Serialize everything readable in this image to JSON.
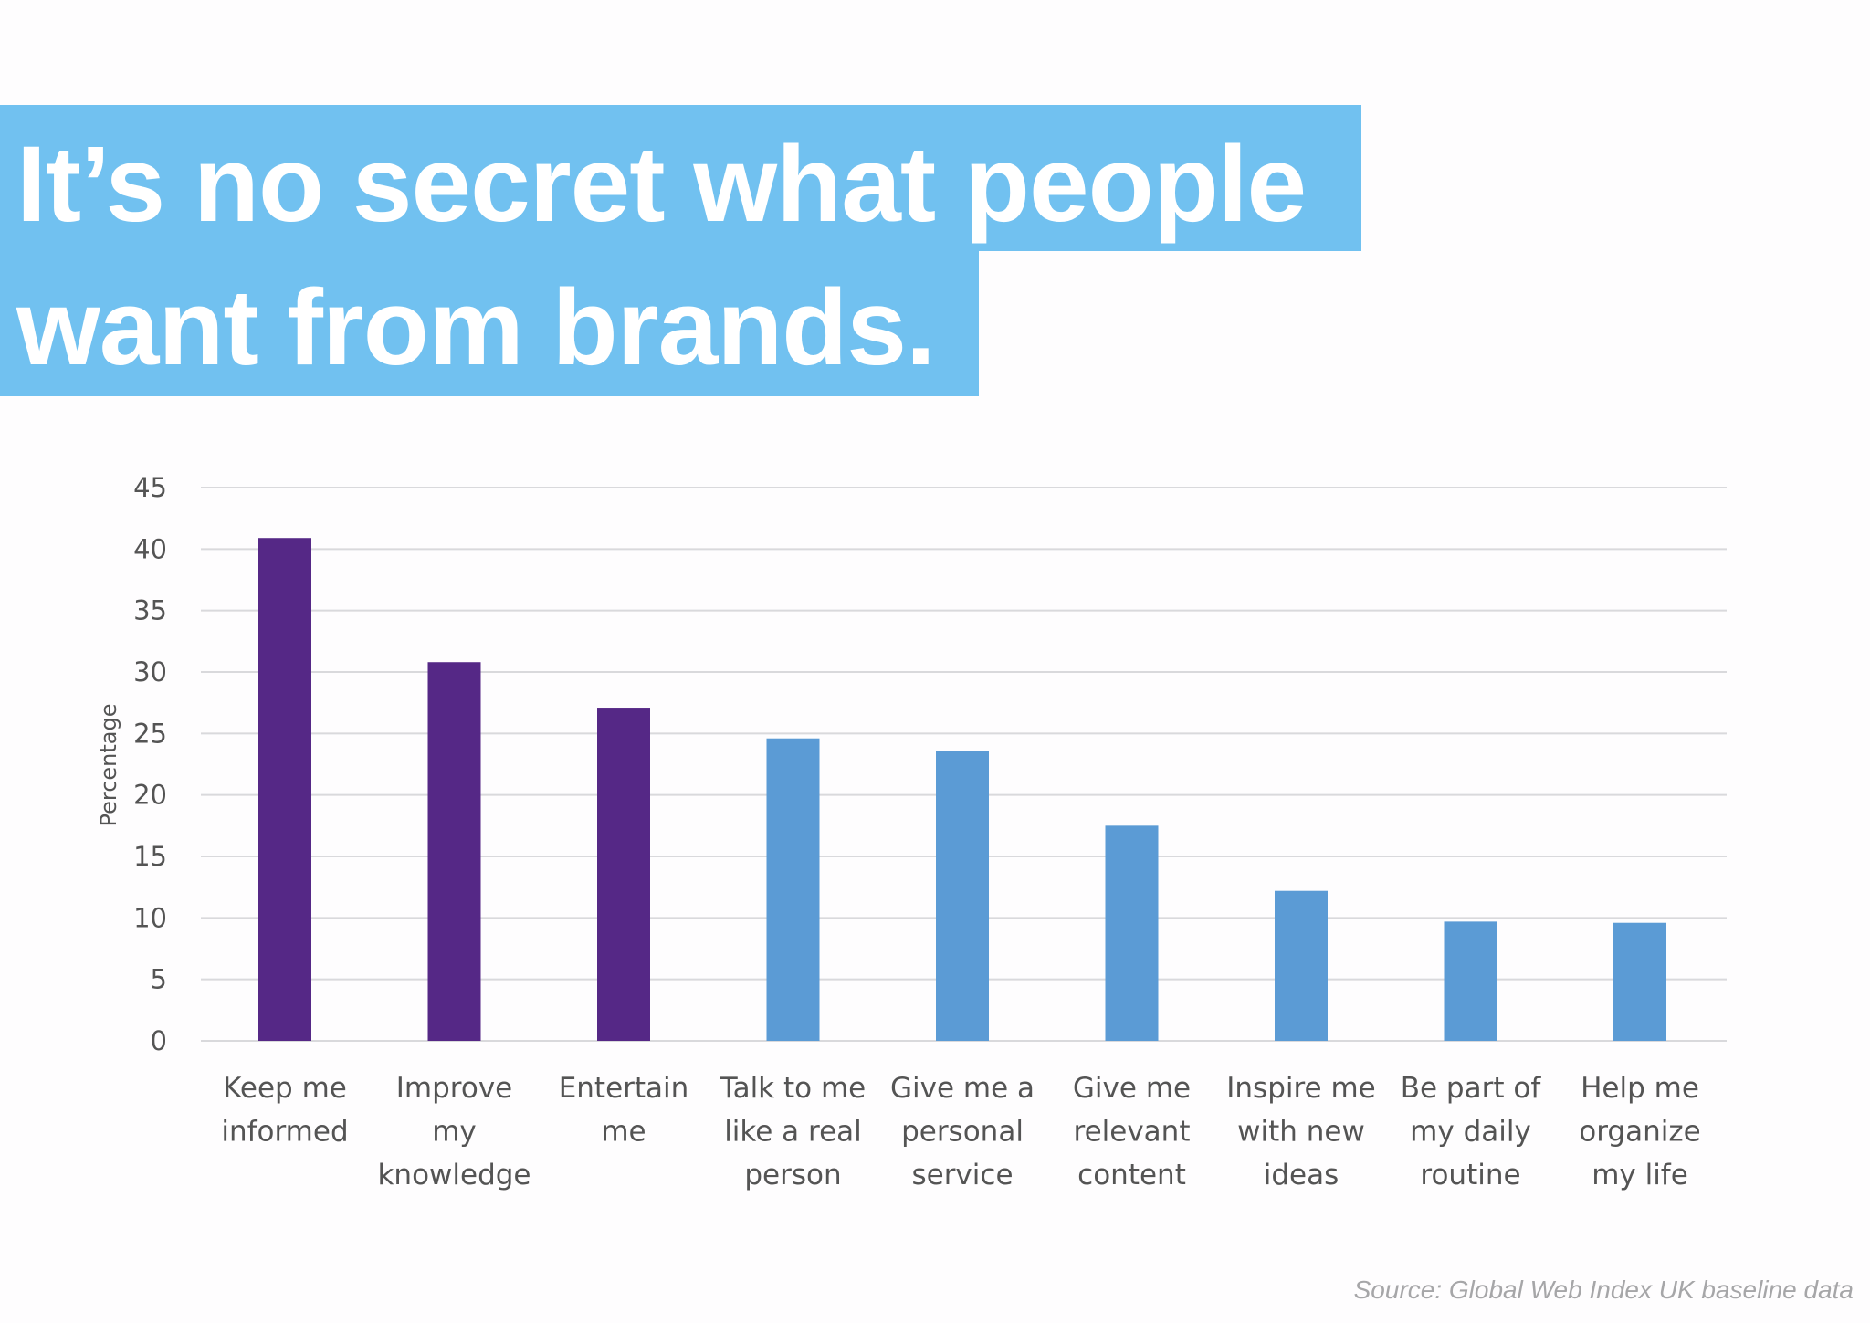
{
  "title": {
    "line1": "It’s no secret what people",
    "line2": "want from brands.",
    "band_color": "#71c1f0",
    "text_color": "#ffffff"
  },
  "source": "Source: Global Web Index UK baseline data",
  "colors": {
    "highlight": "#552886",
    "standard": "#5b9bd5",
    "grid": "#d9d9dc",
    "text": "#545454"
  },
  "chart_data": {
    "type": "bar",
    "title": "It’s no secret what people want from brands.",
    "xlabel": "",
    "ylabel": "Percentage",
    "ylim": [
      0,
      45
    ],
    "yticks": [
      0,
      5,
      10,
      15,
      20,
      25,
      30,
      35,
      40,
      45
    ],
    "grid": true,
    "legend": null,
    "categories": [
      "Keep me informed",
      "Improve my knowledge",
      "Entertain me",
      "Talk to me like a real person",
      "Give me a personal service",
      "Give me relevant content",
      "Inspire me with new ideas",
      "Be part of my daily routine",
      "Help me organize my life"
    ],
    "category_lines": [
      [
        "Keep me",
        "informed"
      ],
      [
        "Improve",
        "my",
        "knowledge"
      ],
      [
        "Entertain",
        "me"
      ],
      [
        "Talk to me",
        "like a real",
        "person"
      ],
      [
        "Give me a",
        "personal",
        "service"
      ],
      [
        "Give me",
        "relevant",
        "content"
      ],
      [
        "Inspire me",
        "with new",
        "ideas"
      ],
      [
        "Be part of",
        "my daily",
        "routine"
      ],
      [
        "Help me",
        "organize",
        "my life"
      ]
    ],
    "values": [
      40.9,
      30.8,
      27.1,
      24.6,
      23.6,
      17.5,
      12.2,
      9.7,
      9.6
    ],
    "bar_colors": [
      "#552886",
      "#552886",
      "#552886",
      "#5b9bd5",
      "#5b9bd5",
      "#5b9bd5",
      "#5b9bd5",
      "#5b9bd5",
      "#5b9bd5"
    ],
    "annotations": [
      "Source: Global Web Index UK baseline data"
    ]
  }
}
